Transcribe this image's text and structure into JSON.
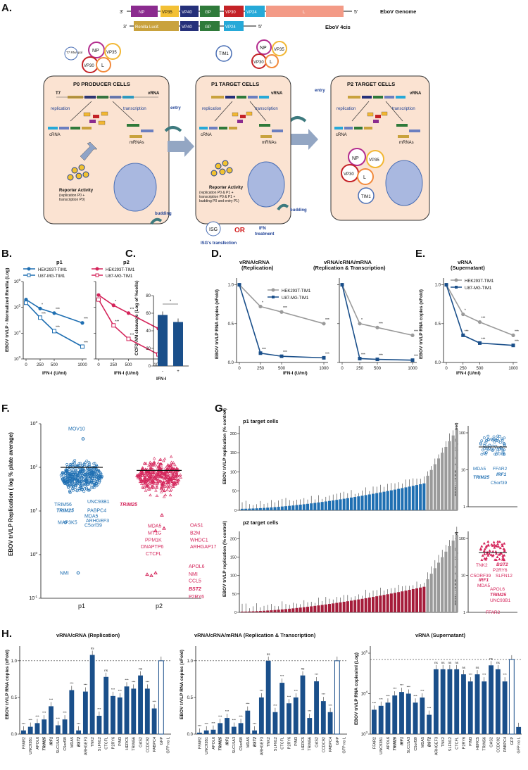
{
  "colors": {
    "blue": "#1f6fb2",
    "red": "#d4245a",
    "navy": "#1a4f8a",
    "grey": "#9a9a9a",
    "cell": "#fbe3d2"
  },
  "panels": {
    "A": {
      "label": "A.",
      "genome": {
        "prime3": "3'",
        "prime5": "5'",
        "segments": [
          "NP",
          "VP35",
          "VP40",
          "GP",
          "VP30",
          "VP24",
          "L"
        ],
        "title": "EboV Genome"
      },
      "minigenome": {
        "prime3": "3'",
        "prime5": "5'",
        "segments": [
          "Renilla Lucif.",
          "VP40",
          "GP",
          "VP24"
        ],
        "title": "EboV 4cis"
      },
      "p0": {
        "title": "P0 PRODUCER CELLS",
        "t7": "T7",
        "vrna": "vRNA",
        "replication": "replication",
        "transcription": "transcription",
        "crna": "cRNA",
        "mrnas": "mRNAs",
        "reporter_title": "Reporter Activity",
        "reporter_detail": [
          "(replication P0 +",
          "transcription P0)"
        ],
        "plasmid": "T7 RNA pol"
      },
      "p1": {
        "title": "P1 TARGET CELLS",
        "vrna": "vRNA",
        "replication": "replication",
        "transcription": "transcription",
        "crna": "cRNA",
        "mrnas": "mRNAs",
        "reporter_title": "Reporter Activity",
        "reporter_detail": [
          "(replication P0 & P1 +",
          "transcription P0 & P1 +",
          "budding P0 and entry P1)"
        ],
        "tim1": "TIM1"
      },
      "p2": {
        "title": "P2 TARGET CELLS",
        "vrna": "vRNA",
        "replication": "replication",
        "transcription": "transcription",
        "crna": "cRNA",
        "mrnas": "mRNAs",
        "tim1": "TIM1"
      },
      "proteins": {
        "np": "NP",
        "vp35": "VP35",
        "vp30": "VP30",
        "l": "L"
      },
      "entry": "entry",
      "budding": "budding",
      "isg": "ISG",
      "isg_label": "ISG's transfection",
      "or": "OR",
      "ifn": [
        "IFN",
        "treatment"
      ]
    },
    "B": {
      "label": "B.",
      "ylabel": "EBOV trVLP - Normalized Renilla (Log)",
      "xlabel": "IFN-I (U/ml)",
      "p1_title": "p1",
      "p2_title": "p2",
      "legend_p1": [
        "HEK293T-TIM1",
        "U87-MG-TIM1"
      ],
      "legend_p2": [
        "HEK293T-TIM1",
        "U87-MG-TIM1"
      ],
      "yticks": [
        "10^6",
        "10^5",
        "10^4",
        "10^3"
      ],
      "xticks": [
        "0",
        "250",
        "500",
        "1000"
      ],
      "sig": "***"
    },
    "C": {
      "label": "C.",
      "ylabel": "CCF2-AM cleavage (Log of %cells)",
      "xlabel": "IFN-I",
      "xticks": [
        "-",
        "+"
      ],
      "yticks": [
        "0",
        "20",
        "40",
        "60",
        "80"
      ],
      "values": [
        58,
        50
      ],
      "sig": "*"
    },
    "D": {
      "label": "D.",
      "title1": "vRNA/cRNA",
      "subtitle1": "(Replication)",
      "title2": "vRNA/cRNA/mRNA",
      "subtitle2": "(Replication & Transcription)",
      "ylabel": "EBOV trVLP RNA copies (xFold)",
      "xlabel": "IFN-I (U/ml)",
      "legend": [
        "HEK293T-TIM1",
        "U87-MG-TIM1"
      ],
      "yticks": [
        "0.0",
        "0.5",
        "1.0"
      ],
      "xticks": [
        "0",
        "250",
        "500",
        "1000"
      ]
    },
    "E": {
      "label": "E.",
      "title": "vRNA",
      "subtitle": "(Supernatant)",
      "ylabel": "EBOV trVLP RNA copies (xFold)",
      "xlabel": "IFN-I (U/ml)",
      "legend": [
        "HEK293T-TIM1",
        "U87-MG-TIM1"
      ],
      "yticks": [
        "0.0",
        "0.5",
        "1.0"
      ],
      "xticks": [
        "0",
        "250",
        "500",
        "1000"
      ]
    },
    "F": {
      "label": "F.",
      "ylabel": "EBOV trVLP Replication ( log % plate average)",
      "yticks": [
        "10^3",
        "10^2",
        "10^1",
        "10^0",
        "10^-1"
      ],
      "xticks": [
        "p1",
        "p2"
      ],
      "p1_labels": [
        "MOV10",
        "UNC93B1",
        "TRIM56",
        "TRIM25",
        "PABPC4",
        "MDA5",
        "ARHGEF3",
        "C5orf39",
        "MAP3K5",
        "NMI"
      ],
      "p2_labels": [
        "TRIM25",
        "MDA5",
        "MT1G",
        "PPM1K",
        "DNAPTP6",
        "CTCFL",
        "OAS1",
        "B2M",
        "WHDC1",
        "ARHGAP17",
        "APOL6",
        "NMI",
        "CCL5",
        "BST2",
        "P2RY6"
      ]
    },
    "G": {
      "label": "G.",
      "p1_title": "p1 target cells",
      "p2_title": "p2 target cells",
      "ylabel": "EBOV trVLP replication (% control)",
      "yticks": [
        "0",
        "50",
        "100",
        "150",
        "200"
      ],
      "inset_ylabel": "EBOV trVLP Replication ( log % control)",
      "inset1_labels": [
        "MDA5",
        "FFAR2",
        "IRF1",
        "TRIM25",
        "C5orf39"
      ],
      "inset2_labels": [
        "TNK2",
        "P2RY6",
        "BST2",
        "C5ORF39",
        "SLFN12",
        "IRF1",
        "MDA5",
        "APOL6",
        "TRIM25",
        "UNC93B1",
        "FFAR2"
      ],
      "inset_yticks": [
        "100",
        "10",
        "1"
      ]
    },
    "H": {
      "label": "H.",
      "title1": "vRNA/cRNA (Replication)",
      "title2": "vRNA/cRNA/mRNA (Replication & Transcription)",
      "title3": "vRNA (Supernatant)",
      "ylabel1": "EBOV trVLP RNA copies (xFold)",
      "ylabel3": "EBOV trVLP RNA copies/ml (Log)",
      "yticks": [
        "0.0",
        "0.5",
        "1.0"
      ],
      "yticks3": [
        "10^5",
        "10^4",
        "10^3"
      ],
      "genes1": [
        "FFAR2",
        "UNC93B1",
        "APOL6",
        "TRIM25",
        "IRF1",
        "SLC15A3",
        "C5orf39",
        "MDA5",
        "BST2",
        "ARHGEF3",
        "TNK2",
        "SLFN12",
        "CTCFL",
        "P2RY6",
        "PIM3",
        "HERC5",
        "TRIM56",
        "OAS2",
        "CCDC92",
        "PABPC4",
        "GFP",
        "GFP no L"
      ],
      "genes3": [
        "FFAR2",
        "UNC93B1",
        "APOL6",
        "TRIM25",
        "IRF1",
        "SLC15A3",
        "C5orf39",
        "MDA5",
        "BST2",
        "ARHGEF3",
        "TNK2",
        "SLFN12",
        "CTCFL",
        "P2RY6",
        "PIM3",
        "HERC5",
        "TRIM56",
        "OAS2",
        "CCDC92",
        "PABPC4",
        "GFP",
        "GFP no L"
      ],
      "sig_ns": "ns",
      "sig": "***"
    }
  },
  "chart_data": [
    {
      "type": "line",
      "title": "B p1",
      "xlabel": "IFN-I (U/ml)",
      "ylabel": "EBOV trVLP - Normalized Renilla (Log)",
      "x": [
        0,
        250,
        500,
        1000
      ],
      "ylim": [
        1000,
        1000000
      ],
      "series": [
        {
          "name": "HEK293T-TIM1",
          "values": [
            200000,
            90000,
            60000,
            25000
          ]
        },
        {
          "name": "U87-MG-TIM1",
          "values": [
            150000,
            40000,
            12000,
            3000
          ]
        }
      ]
    },
    {
      "type": "line",
      "title": "B p2",
      "xlabel": "IFN-I (U/ml)",
      "x": [
        0,
        250,
        500,
        1000
      ],
      "ylim": [
        1000,
        1000000
      ],
      "series": [
        {
          "name": "HEK293T-TIM1",
          "values": [
            300000,
            120000,
            60000,
            15000
          ]
        },
        {
          "name": "U87-MG-TIM1",
          "values": [
            200000,
            20000,
            6000,
            1500
          ]
        }
      ]
    },
    {
      "type": "bar",
      "title": "C",
      "categories": [
        "-",
        "+"
      ],
      "values": [
        58,
        50
      ],
      "ylim": [
        0,
        80
      ],
      "ylabel": "CCF2-AM cleavage (Log of %cells)",
      "xlabel": "IFN-I"
    },
    {
      "type": "line",
      "title": "D vRNA/cRNA (Replication)",
      "x": [
        0,
        250,
        500,
        1000
      ],
      "ylim": [
        0,
        1.0
      ],
      "series": [
        {
          "name": "HEK293T-TIM1",
          "values": [
            1.0,
            0.72,
            0.65,
            0.5
          ]
        },
        {
          "name": "U87-MG-TIM1",
          "values": [
            1.0,
            0.12,
            0.08,
            0.06
          ]
        }
      ]
    },
    {
      "type": "line",
      "title": "D vRNA/cRNA/mRNA (Replication & Transcription)",
      "x": [
        0,
        250,
        500,
        1000
      ],
      "ylim": [
        0,
        1.0
      ],
      "series": [
        {
          "name": "HEK293T-TIM1",
          "values": [
            1.0,
            0.5,
            0.45,
            0.35
          ]
        },
        {
          "name": "U87-MG-TIM1",
          "values": [
            1.0,
            0.05,
            0.04,
            0.03
          ]
        }
      ]
    },
    {
      "type": "line",
      "title": "E vRNA (Supernatant)",
      "x": [
        0,
        250,
        500,
        1000
      ],
      "ylim": [
        0,
        1.0
      ],
      "series": [
        {
          "name": "HEK293T-TIM1",
          "values": [
            1.0,
            0.62,
            0.52,
            0.35
          ]
        },
        {
          "name": "U87-MG-TIM1",
          "values": [
            1.0,
            0.35,
            0.25,
            0.22
          ]
        }
      ]
    },
    {
      "type": "bar",
      "title": "H vRNA/cRNA (Replication)",
      "categories": [
        "FFAR2",
        "UNC93B1",
        "APOL6",
        "TRIM25",
        "IRF1",
        "SLC15A3",
        "C5orf39",
        "MDA5",
        "BST2",
        "ARHGEF3",
        "TNK2",
        "SLFN12",
        "CTCFL",
        "P2RY6",
        "PIM3",
        "HERC5",
        "TRIM56",
        "OAS2",
        "CCDC92",
        "PABPC4",
        "GFP",
        "GFP no L"
      ],
      "values": [
        0.05,
        0.1,
        0.15,
        0.2,
        0.38,
        0.12,
        0.2,
        0.6,
        0.05,
        0.58,
        1.08,
        0.25,
        0.78,
        0.52,
        0.5,
        0.65,
        0.62,
        0.8,
        0.62,
        0.35,
        1.0,
        0.0
      ],
      "ylim": [
        0,
        1.2
      ]
    },
    {
      "type": "bar",
      "title": "H vRNA/cRNA/mRNA (Replication & Transcription)",
      "categories": [
        "FFAR2",
        "UNC93B1",
        "APOL6",
        "TRIM25",
        "IRF1",
        "SLC15A3",
        "C5orf39",
        "MDA5",
        "BST2",
        "ARHGEF3",
        "TNK2",
        "SLFN12",
        "CTCFL",
        "P2RY6",
        "PIM3",
        "HERC5",
        "TRIM56",
        "OAS2",
        "CCDC92",
        "PABPC4",
        "GFP",
        "GFP no L"
      ],
      "values": [
        0.02,
        0.05,
        0.06,
        0.15,
        0.22,
        0.1,
        0.15,
        0.32,
        0.05,
        0.5,
        1.0,
        0.3,
        0.7,
        0.42,
        0.5,
        0.8,
        0.22,
        0.72,
        0.45,
        0.3,
        1.0,
        0.0
      ],
      "ylim": [
        0,
        1.2
      ]
    },
    {
      "type": "bar",
      "title": "H vRNA (Supernatant)",
      "categories": [
        "FFAR2",
        "UNC93B1",
        "APOL6",
        "TRIM25",
        "IRF1",
        "SLC15A3",
        "C5orf39",
        "MDA5",
        "BST2",
        "ARHGEF3",
        "TNK2",
        "SLFN12",
        "CTCFL",
        "P2RY6",
        "PIM3",
        "HERC5",
        "TRIM56",
        "OAS2",
        "CCDC92",
        "PABPC4",
        "GFP",
        "GFP no L"
      ],
      "values": [
        4000,
        5000,
        6000,
        9000,
        11000,
        10000,
        6000,
        8000,
        3000,
        40000,
        40000,
        40000,
        40000,
        30000,
        20000,
        30000,
        20000,
        50000,
        40000,
        20000,
        70000,
        1500
      ],
      "ylim": [
        1000,
        100000
      ]
    }
  ]
}
